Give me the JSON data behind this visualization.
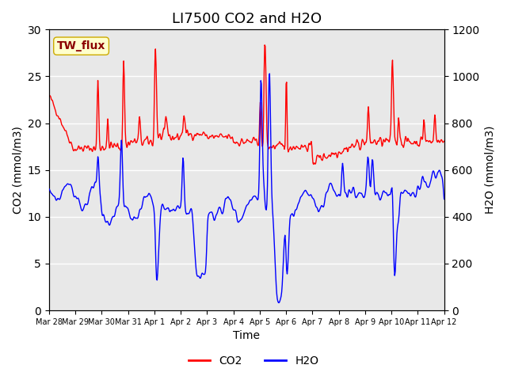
{
  "title": "LI7500 CO2 and H2O",
  "xlabel": "Time",
  "ylabel_left": "CO2 (mmol/m3)",
  "ylabel_right": "H2O (mmol/m3)",
  "ylim_left": [
    0,
    30
  ],
  "ylim_right": [
    0,
    1200
  ],
  "yticks_left": [
    0,
    5,
    10,
    15,
    20,
    25,
    30
  ],
  "yticks_right": [
    0,
    200,
    400,
    600,
    800,
    1000,
    1200
  ],
  "xtick_labels": [
    "Mar 28",
    "Mar 29",
    "Mar 30",
    "Mar 31",
    "Apr 1",
    "Apr 2",
    "Apr 3",
    "Apr 4",
    "Apr 5",
    "Apr 6",
    "Apr 7",
    "Apr 8",
    "Apr 9",
    "Apr 10",
    "Apr 11",
    "Apr 12"
  ],
  "annotation_text": "TW_flux",
  "annotation_color": "#8B0000",
  "annotation_bg": "#FFFFCC",
  "bg_color": "#E8E8E8",
  "co2_color": "red",
  "h2o_color": "blue",
  "legend_co2": "CO2",
  "legend_h2o": "H2O",
  "title_fontsize": 13,
  "label_fontsize": 10
}
